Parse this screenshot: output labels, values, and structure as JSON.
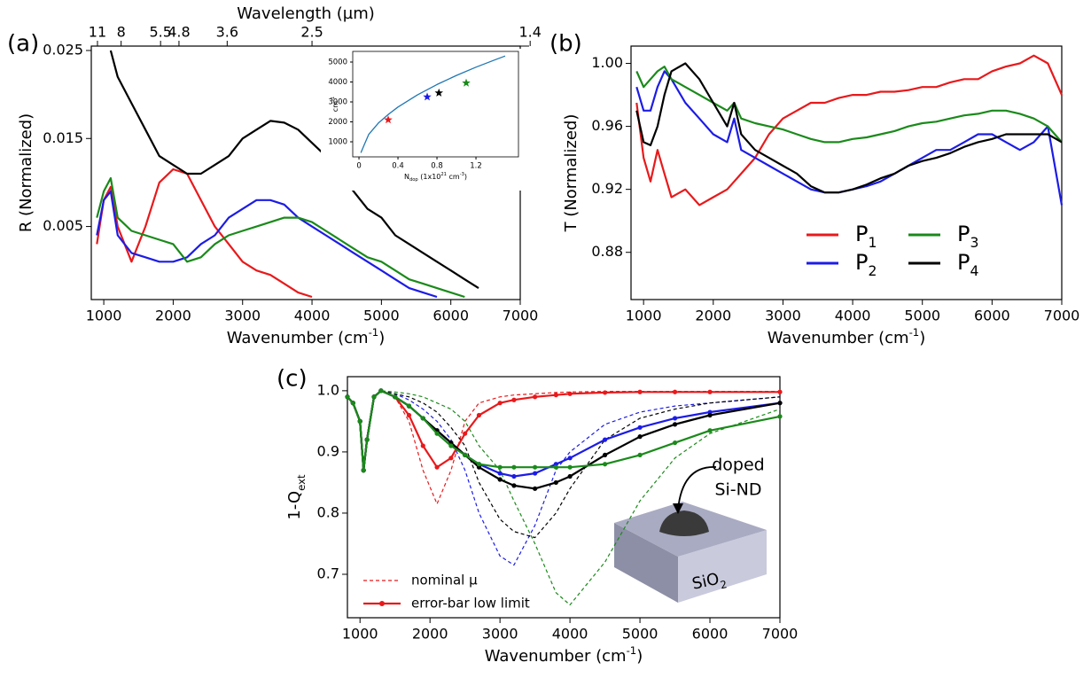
{
  "chart_data": [
    {
      "type": "line",
      "panel_label": "(a)",
      "xlabel": [
        {
          "text": "Wavenumber (cm"
        },
        {
          "text": "-1",
          "script": "sup"
        },
        {
          "text": ")"
        }
      ],
      "ylabel": [
        {
          "text": "R (Normalized)"
        }
      ],
      "x2label": [
        {
          "text": "Wavelength (µm)"
        }
      ],
      "xlim": [
        820,
        7000
      ],
      "ylim": [
        -0.0033,
        0.0255
      ],
      "xticks": [
        1000,
        2000,
        3000,
        4000,
        5000,
        6000,
        7000
      ],
      "yticks": [
        0.005,
        0.015,
        0.025
      ],
      "x2ticks": [
        11,
        8,
        5.5,
        4.8,
        3.6,
        2.5,
        1.4
      ],
      "x": [
        900,
        1000,
        1100,
        1200,
        1400,
        1600,
        1800,
        2000,
        2200,
        2400,
        2600,
        2800,
        3000,
        3200,
        3400,
        3600,
        3800,
        4000,
        4200,
        4400,
        4600,
        4800,
        5000,
        5200,
        5400,
        5600,
        5800,
        6000,
        6200,
        6400
      ],
      "series": [
        {
          "color": "#e8191b",
          "values": [
            0.003,
            0.008,
            0.0095,
            0.005,
            0.001,
            0.005,
            0.01,
            0.0115,
            0.011,
            0.008,
            0.005,
            0.003,
            0.001,
            0,
            -0.0005,
            -0.0015,
            -0.0025,
            -0.003,
            null,
            null,
            null,
            null,
            null,
            null,
            null,
            null,
            null,
            null,
            null,
            null
          ]
        },
        {
          "color": "#1c1ce6",
          "values": [
            0.004,
            0.008,
            0.009,
            0.004,
            0.002,
            0.0015,
            0.001,
            0.001,
            0.0015,
            0.003,
            0.004,
            0.006,
            0.007,
            0.008,
            0.008,
            0.0075,
            0.006,
            0.005,
            0.004,
            0.003,
            0.002,
            0.001,
            0,
            -0.001,
            -0.002,
            -0.0025,
            -0.003,
            null,
            null,
            null
          ]
        },
        {
          "color": "#1a8a1a",
          "values": [
            0.006,
            0.009,
            0.0105,
            0.006,
            0.0045,
            0.004,
            0.0035,
            0.003,
            0.001,
            0.0015,
            0.003,
            0.004,
            0.0045,
            0.005,
            0.0055,
            0.006,
            0.006,
            0.0055,
            0.0045,
            0.0035,
            0.0025,
            0.0015,
            0.001,
            0,
            -0.001,
            -0.0015,
            -0.002,
            -0.0025,
            -0.003,
            null
          ]
        },
        {
          "color": "#000000",
          "values": [
            null,
            null,
            0.025,
            0.022,
            0.019,
            0.016,
            0.013,
            0.012,
            0.011,
            0.011,
            0.012,
            0.013,
            0.015,
            0.016,
            0.017,
            0.0168,
            0.016,
            0.0145,
            0.013,
            0.011,
            0.009,
            0.007,
            0.006,
            0.004,
            0.003,
            0.002,
            0.001,
            0,
            -0.001,
            -0.002
          ]
        }
      ]
    },
    {
      "type": "line",
      "xlabel": [
        {
          "text": "N"
        },
        {
          "text": "dop",
          "script": "sub"
        },
        {
          "text": " (1x10"
        },
        {
          "text": "21",
          "script": "sup"
        },
        {
          "text": " cm"
        },
        {
          "text": "-3",
          "script": "sup"
        },
        {
          "text": ")"
        }
      ],
      "ylabel": [
        {
          "text": "cm"
        },
        {
          "text": "-1",
          "script": "sup"
        }
      ],
      "xlim": [
        -0.064,
        1.636
      ],
      "ylim": [
        244,
        5533
      ],
      "xticks": [
        0,
        0.4,
        0.8,
        1.2
      ],
      "yticks": [
        1000,
        2000,
        3000,
        4000,
        5000
      ],
      "series": [
        {
          "color": "#1f77b4",
          "x": [
            0.02,
            0.05,
            0.1,
            0.2,
            0.3,
            0.4,
            0.6,
            0.8,
            1.0,
            1.2,
            1.4,
            1.5
          ],
          "values": [
            450,
            800,
            1370,
            1940,
            2370,
            2740,
            3350,
            3870,
            4330,
            4740,
            5120,
            5300
          ]
        },
        {
          "color": "#e8191b",
          "marker": "star",
          "x": [
            0.3
          ],
          "values": [
            2100
          ]
        },
        {
          "color": "#1c1ce6",
          "marker": "star",
          "x": [
            0.7
          ],
          "values": [
            3250
          ]
        },
        {
          "color": "#000000",
          "marker": "star",
          "x": [
            0.82
          ],
          "values": [
            3450
          ]
        },
        {
          "color": "#1a8a1a",
          "marker": "star",
          "x": [
            1.1
          ],
          "values": [
            3950
          ]
        }
      ]
    },
    {
      "type": "line",
      "panel_label": "(b)",
      "xlabel": [
        {
          "text": "Wavenumber (cm"
        },
        {
          "text": "-1",
          "script": "sup"
        },
        {
          "text": ")"
        }
      ],
      "ylabel": [
        {
          "text": "T (Normalized)"
        }
      ],
      "xlim": [
        820,
        7000
      ],
      "ylim": [
        0.85,
        1.011
      ],
      "xticks": [
        1000,
        2000,
        3000,
        4000,
        5000,
        6000,
        7000
      ],
      "yticks": [
        0.88,
        0.92,
        0.96,
        {
          "value": 1,
          "label": "1.00"
        }
      ],
      "x": [
        900,
        1000,
        1100,
        1200,
        1300,
        1400,
        1600,
        1800,
        2000,
        2200,
        2300,
        2400,
        2600,
        2800,
        3000,
        3200,
        3400,
        3600,
        3800,
        4000,
        4200,
        4400,
        4600,
        4800,
        5000,
        5200,
        5400,
        5600,
        5800,
        6000,
        6200,
        6400,
        6600,
        6800,
        7000
      ],
      "series": [
        {
          "name": [
            {
              "text": "P"
            },
            {
              "text": "1",
              "script": "sub"
            }
          ],
          "color": "#e8191b",
          "values": [
            0.975,
            0.94,
            0.925,
            0.945,
            0.93,
            0.915,
            0.92,
            0.91,
            0.915,
            0.92,
            0.925,
            0.93,
            0.94,
            0.955,
            0.965,
            0.97,
            0.975,
            0.975,
            0.978,
            0.98,
            0.98,
            0.982,
            0.982,
            0.983,
            0.985,
            0.985,
            0.988,
            0.99,
            0.99,
            0.995,
            0.998,
            1.0,
            1.005,
            1.0,
            0.98
          ]
        },
        {
          "name": [
            {
              "text": "P"
            },
            {
              "text": "2",
              "script": "sub"
            }
          ],
          "color": "#1c1ce6",
          "values": [
            0.985,
            0.97,
            0.97,
            0.985,
            0.995,
            0.99,
            0.975,
            0.965,
            0.955,
            0.95,
            0.965,
            0.945,
            0.94,
            0.935,
            0.93,
            0.925,
            0.92,
            0.918,
            0.918,
            0.92,
            0.922,
            0.925,
            0.93,
            0.935,
            0.94,
            0.945,
            0.945,
            0.95,
            0.955,
            0.955,
            0.95,
            0.945,
            0.95,
            0.96,
            0.91
          ]
        },
        {
          "name": [
            {
              "text": "P"
            },
            {
              "text": "3",
              "script": "sub"
            }
          ],
          "color": "#1a8a1a",
          "values": [
            0.995,
            0.985,
            0.99,
            0.995,
            0.998,
            0.99,
            0.985,
            0.98,
            0.975,
            0.97,
            0.975,
            0.965,
            0.962,
            0.96,
            0.958,
            0.955,
            0.952,
            0.95,
            0.95,
            0.952,
            0.953,
            0.955,
            0.957,
            0.96,
            0.962,
            0.963,
            0.965,
            0.967,
            0.968,
            0.97,
            0.97,
            0.968,
            0.965,
            0.96,
            0.95
          ]
        },
        {
          "name": [
            {
              "text": "P"
            },
            {
              "text": "4",
              "script": "sub"
            }
          ],
          "color": "#000000",
          "values": [
            0.97,
            0.95,
            0.948,
            0.96,
            0.98,
            0.995,
            1.0,
            0.99,
            0.975,
            0.96,
            0.975,
            0.955,
            0.945,
            0.94,
            0.935,
            0.93,
            0.922,
            0.918,
            0.918,
            0.92,
            0.923,
            0.927,
            0.93,
            0.935,
            0.938,
            0.94,
            0.943,
            0.947,
            0.95,
            0.952,
            0.955,
            0.955,
            0.955,
            0.955,
            0.95
          ]
        }
      ]
    },
    {
      "type": "line",
      "panel_label": "(c)",
      "xlabel": [
        {
          "text": "Wavenumber (cm"
        },
        {
          "text": "-1",
          "script": "sup"
        },
        {
          "text": ")"
        }
      ],
      "ylabel": [
        {
          "text": "1-Q"
        },
        {
          "text": "ext",
          "script": "sub"
        }
      ],
      "xlim": [
        820,
        7000
      ],
      "ylim": [
        0.629,
        1.023
      ],
      "xticks": [
        1000,
        2000,
        3000,
        4000,
        5000,
        6000,
        7000
      ],
      "yticks": [
        0.7,
        0.8,
        0.9,
        {
          "value": 1,
          "label": "1.0"
        }
      ],
      "x": [
        820,
        900,
        1000,
        1050,
        1100,
        1200,
        1300,
        1500,
        1700,
        1900,
        2100,
        2300,
        2500,
        2700,
        3000,
        3200,
        3500,
        3800,
        4000,
        4500,
        5000,
        5500,
        6000,
        7000
      ],
      "series": [
        {
          "color": "#e8191b",
          "dash": true,
          "values": [
            0.99,
            0.98,
            0.95,
            0.87,
            0.92,
            0.99,
            1.0,
            0.99,
            0.95,
            0.87,
            0.815,
            0.87,
            0.95,
            0.98,
            0.99,
            0.993,
            0.995,
            0.997,
            0.998,
            0.999,
            0.999,
            0.999,
            0.999,
            0.999
          ]
        },
        {
          "color": "#1c1ce6",
          "dash": true,
          "values": [
            0.99,
            0.98,
            0.95,
            0.87,
            0.92,
            0.99,
            1.0,
            0.995,
            0.985,
            0.97,
            0.95,
            0.92,
            0.87,
            0.8,
            0.73,
            0.715,
            0.78,
            0.87,
            0.9,
            0.945,
            0.965,
            0.975,
            0.98,
            0.99
          ]
        },
        {
          "color": "#000000",
          "dash": true,
          "values": [
            0.99,
            0.98,
            0.95,
            0.87,
            0.92,
            0.99,
            1.0,
            0.995,
            0.99,
            0.98,
            0.965,
            0.94,
            0.91,
            0.85,
            0.79,
            0.77,
            0.76,
            0.8,
            0.84,
            0.92,
            0.955,
            0.97,
            0.98,
            0.99
          ]
        },
        {
          "color": "#1a8a1a",
          "dash": true,
          "values": [
            0.99,
            0.98,
            0.95,
            0.87,
            0.92,
            0.99,
            1.0,
            0.998,
            0.995,
            0.99,
            0.98,
            0.97,
            0.95,
            0.91,
            0.87,
            0.82,
            0.75,
            0.67,
            0.65,
            0.72,
            0.82,
            0.89,
            0.93,
            0.97
          ]
        },
        {
          "color": "#e8191b",
          "markers": true,
          "values": [
            0.99,
            0.98,
            0.95,
            0.87,
            0.92,
            0.99,
            1.0,
            0.99,
            0.96,
            0.91,
            0.875,
            0.89,
            0.93,
            0.96,
            0.98,
            0.985,
            0.99,
            0.993,
            0.995,
            0.997,
            0.998,
            0.998,
            0.998,
            0.998
          ]
        },
        {
          "color": "#1c1ce6",
          "markers": true,
          "values": [
            0.99,
            0.98,
            0.95,
            0.87,
            0.92,
            0.99,
            1.0,
            0.99,
            0.975,
            0.955,
            0.935,
            0.915,
            0.895,
            0.88,
            0.865,
            0.86,
            0.865,
            0.88,
            0.89,
            0.92,
            0.94,
            0.955,
            0.965,
            0.98
          ]
        },
        {
          "color": "#000000",
          "markers": true,
          "values": [
            0.99,
            0.98,
            0.95,
            0.87,
            0.92,
            0.99,
            1.0,
            0.99,
            0.975,
            0.955,
            0.935,
            0.915,
            0.895,
            0.875,
            0.855,
            0.845,
            0.84,
            0.85,
            0.86,
            0.895,
            0.925,
            0.945,
            0.96,
            0.98
          ]
        },
        {
          "color": "#1a8a1a",
          "markers": true,
          "values": [
            0.99,
            0.98,
            0.95,
            0.87,
            0.92,
            0.99,
            1.0,
            0.99,
            0.975,
            0.955,
            0.93,
            0.91,
            0.895,
            0.88,
            0.875,
            0.875,
            0.875,
            0.875,
            0.875,
            0.88,
            0.895,
            0.915,
            0.935,
            0.958
          ]
        }
      ],
      "legend": [
        {
          "label": "nominal µ",
          "color": "#e8191b",
          "dash": true
        },
        {
          "label": "error-bar low limit",
          "color": "#e8191b",
          "markers": true
        }
      ],
      "annotations": [
        {
          "text": "doped"
        },
        {
          "text": "Si-ND"
        }
      ],
      "substrate_label": [
        {
          "text": "SiO"
        },
        {
          "text": "2",
          "script": "sub"
        }
      ]
    }
  ]
}
